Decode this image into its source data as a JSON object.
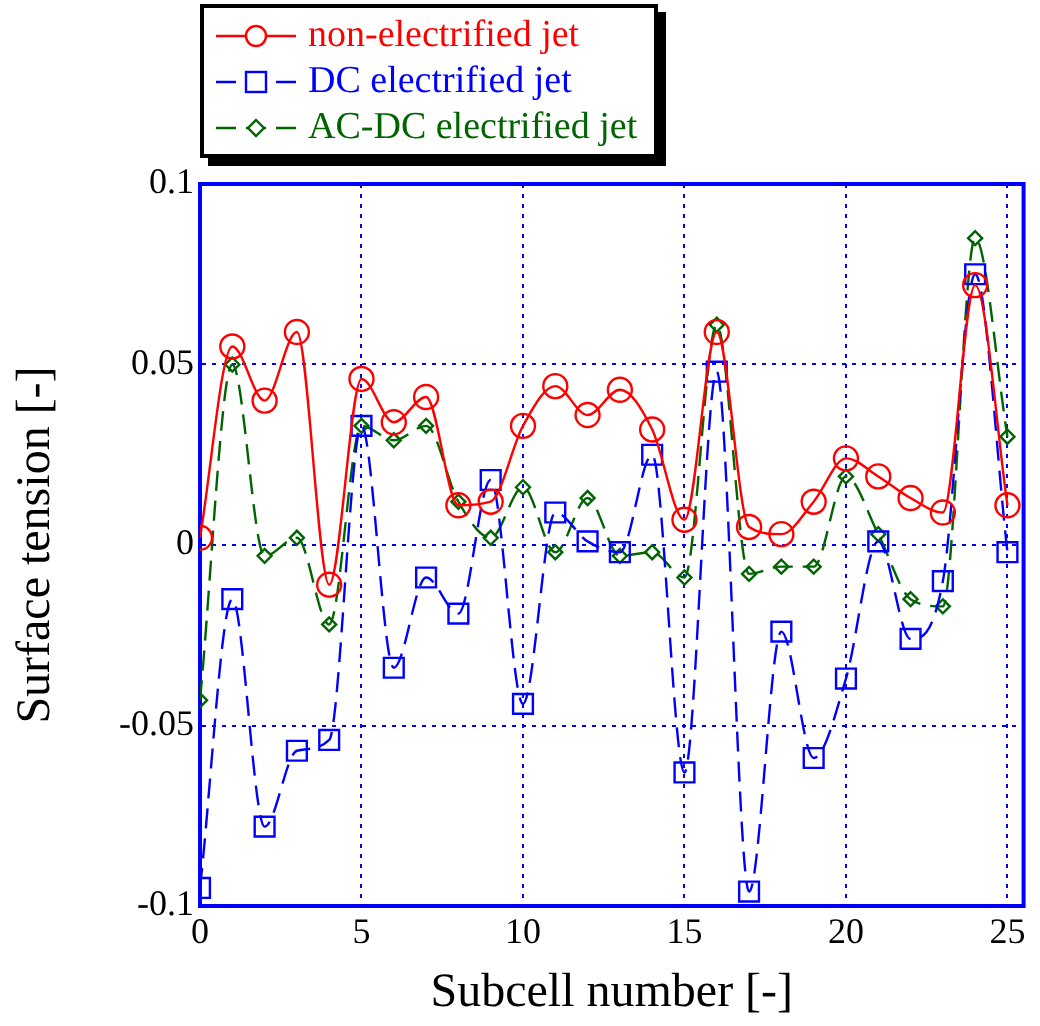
{
  "chart_data": {
    "type": "line",
    "xlabel": "Subcell number [-]",
    "ylabel": "Surface tension [-]",
    "x": [
      0,
      1,
      2,
      3,
      4,
      5,
      6,
      7,
      8,
      9,
      10,
      11,
      12,
      13,
      14,
      15,
      16,
      17,
      18,
      19,
      20,
      21,
      22,
      23,
      24,
      25
    ],
    "series": [
      {
        "name": "non-electrified jet",
        "color": "#ff0000",
        "marker": "circle",
        "line_style": "solid",
        "values": [
          0.002,
          0.055,
          0.04,
          0.059,
          -0.011,
          0.046,
          0.034,
          0.041,
          0.011,
          0.012,
          0.033,
          0.044,
          0.036,
          0.043,
          0.032,
          0.007,
          0.059,
          0.005,
          0.003,
          0.012,
          0.024,
          0.019,
          0.013,
          0.009,
          0.072,
          0.011
        ]
      },
      {
        "name": "DC electrified jet",
        "color": "#0000ff",
        "marker": "square",
        "line_style": "dashed",
        "values": [
          -0.095,
          -0.015,
          -0.078,
          -0.057,
          -0.054,
          0.033,
          -0.034,
          -0.009,
          -0.019,
          0.018,
          -0.044,
          0.009,
          0.001,
          -0.002,
          0.025,
          -0.063,
          0.048,
          -0.096,
          -0.024,
          -0.059,
          -0.037,
          0.001,
          -0.026,
          -0.01,
          0.075,
          -0.002
        ]
      },
      {
        "name": "AC-DC electrified jet",
        "color": "#006400",
        "marker": "diamond",
        "line_style": "dashed",
        "values": [
          -0.043,
          0.05,
          -0.003,
          0.002,
          -0.022,
          0.033,
          0.029,
          0.033,
          0.012,
          0.002,
          0.016,
          -0.002,
          0.013,
          -0.003,
          -0.002,
          -0.009,
          0.061,
          -0.008,
          -0.006,
          -0.006,
          0.019,
          0.003,
          -0.015,
          -0.017,
          0.085,
          0.03
        ]
      }
    ],
    "xlim": [
      0,
      25.5
    ],
    "xticks": [
      0,
      5,
      10,
      15,
      20,
      25
    ],
    "ylim": [
      -0.1,
      0.1
    ],
    "yticks": [
      -0.1,
      -0.05,
      0,
      0.05,
      0.1
    ],
    "grid": true,
    "legend": "top left"
  }
}
